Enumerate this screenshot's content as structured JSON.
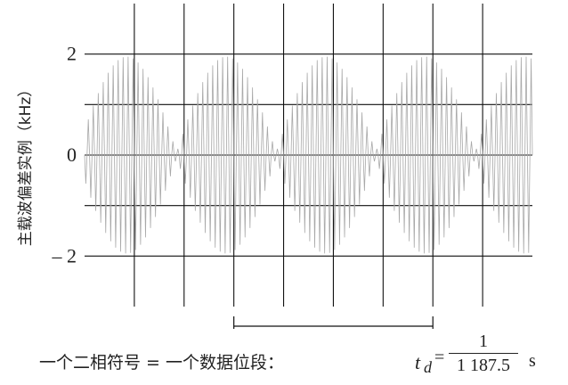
{
  "chart_data": {
    "type": "line",
    "ylabel": "主载波偏差实例（kHz）",
    "xlabel": "",
    "title": "",
    "ylim": [
      -3,
      3
    ],
    "xlim": [
      0,
      9
    ],
    "y_ticks": [
      2,
      0,
      -2
    ],
    "y_tick_labels": [
      "2",
      "0",
      "– 2"
    ],
    "grid": true,
    "series": [
      {
        "envelope_peak_deviation_khz": 1.9,
        "carrier_cycles_per_bit": 20,
        "bit_period_grid_cells": 2,
        "bit_count": 4.5
      }
    ]
  },
  "annotation": {
    "bit_marker_span_cells": 2,
    "caption": "一个二相符号 = 一个数据位段：",
    "formula": {
      "symbol": "t",
      "subscript": "d",
      "equals": "=",
      "numerator": "1",
      "denominator": "1 187.5",
      "unit": "s"
    }
  },
  "colors": {
    "grid": "#111111",
    "waveform": "#a8a8a8",
    "text": "#222222"
  }
}
